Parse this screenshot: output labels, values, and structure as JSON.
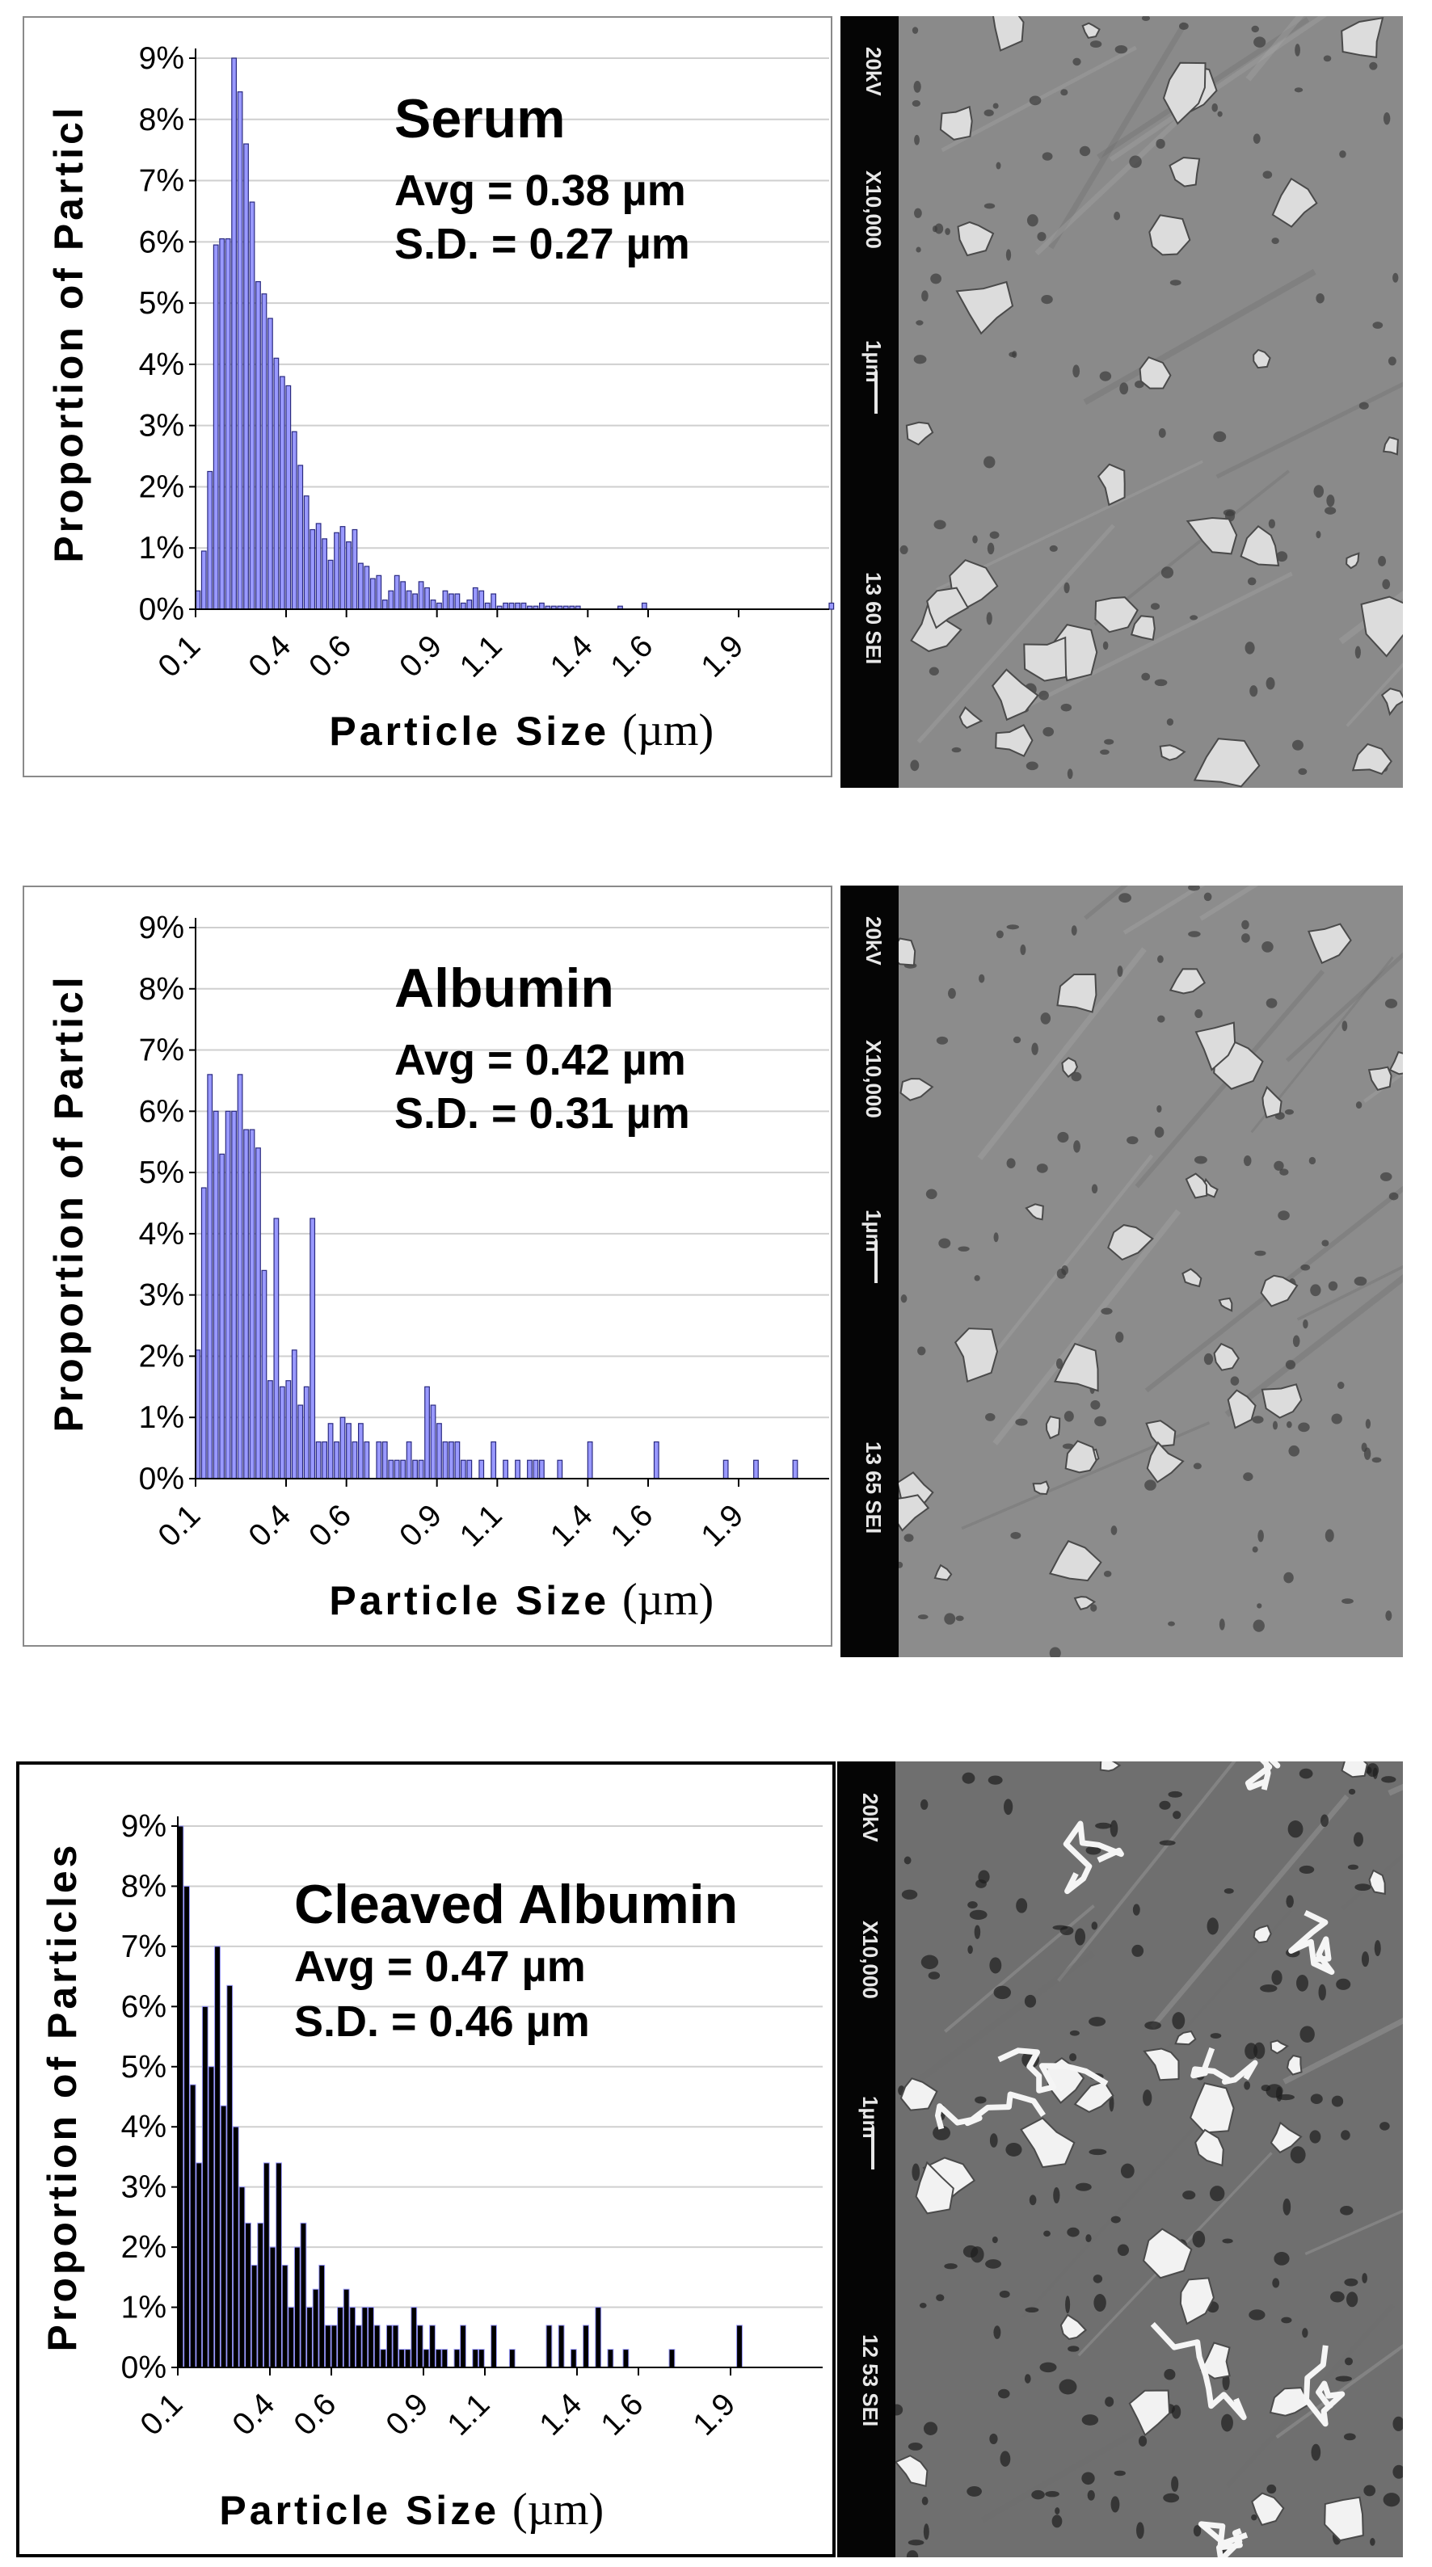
{
  "chart_data": [
    {
      "type": "bar",
      "title": "Serum",
      "stats": [
        "Avg = 0.38 µm",
        "S.D. = 0.27 µm"
      ],
      "xlabel": "Particle Size",
      "xunit": "(µm)",
      "ylabel": "Proportion of Particl",
      "xlim": [
        0.1,
        2.2
      ],
      "ylim": [
        0,
        9
      ],
      "y_ticks": [
        "0%",
        "1%",
        "2%",
        "3%",
        "4%",
        "5%",
        "6%",
        "7%",
        "8%",
        "9%"
      ],
      "x_ticks": [
        {
          "label": "0.1",
          "value": 0.1
        },
        {
          "label": "0.4",
          "value": 0.4
        },
        {
          "label": "0.6",
          "value": 0.6
        },
        {
          "label": "0.9",
          "value": 0.9
        },
        {
          "label": "1.1",
          "value": 1.1
        },
        {
          "label": "1.4",
          "value": 1.4
        },
        {
          "label": "1.6",
          "value": 1.6
        },
        {
          "label": "1.9",
          "value": 1.9
        }
      ],
      "bar_width": 0.015,
      "bar_color": "#9999ff",
      "grid": true,
      "x": [
        0.1,
        0.12,
        0.14,
        0.16,
        0.18,
        0.2,
        0.22,
        0.24,
        0.26,
        0.28,
        0.3,
        0.32,
        0.34,
        0.36,
        0.38,
        0.4,
        0.42,
        0.44,
        0.46,
        0.48,
        0.5,
        0.52,
        0.54,
        0.56,
        0.58,
        0.6,
        0.62,
        0.64,
        0.66,
        0.68,
        0.7,
        0.72,
        0.74,
        0.76,
        0.78,
        0.8,
        0.82,
        0.84,
        0.86,
        0.88,
        0.9,
        0.92,
        0.94,
        0.96,
        0.98,
        1.0,
        1.02,
        1.04,
        1.06,
        1.08,
        1.1,
        1.12,
        1.14,
        1.16,
        1.18,
        1.2,
        1.22,
        1.24,
        1.26,
        1.28,
        1.3,
        1.32,
        1.34,
        1.36,
        1.5,
        1.58,
        2.2
      ],
      "values": [
        0.3,
        0.95,
        2.25,
        5.95,
        6.05,
        6.05,
        9.0,
        8.45,
        7.6,
        6.65,
        5.35,
        5.15,
        4.75,
        4.1,
        3.8,
        3.65,
        2.9,
        2.35,
        1.85,
        1.3,
        1.4,
        1.15,
        0.8,
        1.25,
        1.35,
        1.1,
        1.3,
        0.75,
        0.7,
        0.5,
        0.55,
        0.15,
        0.3,
        0.55,
        0.45,
        0.3,
        0.25,
        0.45,
        0.35,
        0.15,
        0.1,
        0.3,
        0.25,
        0.25,
        0.1,
        0.15,
        0.35,
        0.3,
        0.1,
        0.25,
        0.05,
        0.1,
        0.1,
        0.1,
        0.1,
        0.05,
        0.05,
        0.1,
        0.05,
        0.05,
        0.05,
        0.05,
        0.05,
        0.05,
        0.05,
        0.1,
        0.1
      ]
    },
    {
      "type": "bar",
      "title": "Albumin",
      "stats": [
        "Avg = 0.42 µm",
        "S.D. = 0.31 µm"
      ],
      "xlabel": "Particle Size",
      "xunit": "(µm)",
      "ylabel": "Proportion of Particl",
      "xlim": [
        0.1,
        2.2
      ],
      "ylim": [
        0,
        9
      ],
      "y_ticks": [
        "0%",
        "1%",
        "2%",
        "3%",
        "4%",
        "5%",
        "6%",
        "7%",
        "8%",
        "9%"
      ],
      "x_ticks": [
        {
          "label": "0.1",
          "value": 0.1
        },
        {
          "label": "0.4",
          "value": 0.4
        },
        {
          "label": "0.6",
          "value": 0.6
        },
        {
          "label": "0.9",
          "value": 0.9
        },
        {
          "label": "1.1",
          "value": 1.1
        },
        {
          "label": "1.4",
          "value": 1.4
        },
        {
          "label": "1.6",
          "value": 1.6
        },
        {
          "label": "1.9",
          "value": 1.9
        }
      ],
      "bar_width": 0.015,
      "bar_color": "#9999ff",
      "grid": true,
      "x": [
        0.1,
        0.12,
        0.14,
        0.16,
        0.18,
        0.2,
        0.22,
        0.24,
        0.26,
        0.28,
        0.3,
        0.32,
        0.34,
        0.36,
        0.38,
        0.4,
        0.42,
        0.44,
        0.46,
        0.48,
        0.5,
        0.52,
        0.54,
        0.56,
        0.58,
        0.6,
        0.62,
        0.64,
        0.66,
        0.7,
        0.72,
        0.74,
        0.76,
        0.78,
        0.8,
        0.82,
        0.84,
        0.86,
        0.88,
        0.9,
        0.92,
        0.94,
        0.96,
        0.98,
        1.0,
        1.04,
        1.08,
        1.12,
        1.16,
        1.2,
        1.22,
        1.24,
        1.3,
        1.4,
        1.62,
        1.85,
        1.95,
        2.08
      ],
      "values": [
        2.1,
        4.75,
        6.6,
        6.0,
        5.3,
        6.0,
        6.0,
        6.6,
        5.7,
        5.7,
        5.4,
        3.4,
        1.6,
        4.25,
        1.5,
        1.6,
        2.1,
        1.2,
        1.5,
        4.25,
        0.6,
        0.6,
        0.9,
        0.6,
        1.0,
        0.9,
        0.6,
        0.9,
        0.6,
        0.6,
        0.6,
        0.3,
        0.3,
        0.3,
        0.6,
        0.3,
        0.3,
        1.5,
        1.2,
        0.9,
        0.6,
        0.6,
        0.6,
        0.3,
        0.3,
        0.3,
        0.6,
        0.3,
        0.3,
        0.3,
        0.3,
        0.3,
        0.3,
        0.6,
        0.6,
        0.3,
        0.3,
        0.3
      ]
    },
    {
      "type": "bar",
      "title": "Cleaved Albumin",
      "stats": [
        "Avg = 0.47 µm",
        "S.D. = 0.46 µm"
      ],
      "xlabel": "Particle Size",
      "xunit": "(µm)",
      "ylabel": "Proportion of Particles",
      "xlim": [
        0.1,
        2.2
      ],
      "ylim": [
        0,
        9
      ],
      "y_ticks": [
        "0%",
        "1%",
        "2%",
        "3%",
        "4%",
        "5%",
        "6%",
        "7%",
        "8%",
        "9%"
      ],
      "x_ticks": [
        {
          "label": "0.1",
          "value": 0.1
        },
        {
          "label": "0.4",
          "value": 0.4
        },
        {
          "label": "0.6",
          "value": 0.6
        },
        {
          "label": "0.9",
          "value": 0.9
        },
        {
          "label": "1.1",
          "value": 1.1
        },
        {
          "label": "1.4",
          "value": 1.4
        },
        {
          "label": "1.6",
          "value": 1.6
        },
        {
          "label": "1.9",
          "value": 1.9
        }
      ],
      "bar_width": 0.018,
      "bar_color": "#000000",
      "bar_edge": "#9999ff",
      "grid": true,
      "x": [
        0.1,
        0.12,
        0.14,
        0.16,
        0.18,
        0.2,
        0.22,
        0.24,
        0.26,
        0.28,
        0.3,
        0.32,
        0.34,
        0.36,
        0.38,
        0.4,
        0.42,
        0.44,
        0.46,
        0.48,
        0.5,
        0.52,
        0.54,
        0.56,
        0.58,
        0.6,
        0.62,
        0.64,
        0.66,
        0.68,
        0.7,
        0.72,
        0.74,
        0.76,
        0.78,
        0.8,
        0.82,
        0.84,
        0.86,
        0.88,
        0.9,
        0.92,
        0.94,
        0.96,
        1.0,
        1.02,
        1.06,
        1.08,
        1.12,
        1.18,
        1.3,
        1.34,
        1.38,
        1.42,
        1.46,
        1.5,
        1.55,
        1.7,
        1.92
      ],
      "values": [
        9.0,
        8.0,
        4.7,
        3.4,
        6.0,
        5.0,
        7.0,
        4.35,
        6.35,
        4.0,
        3.0,
        2.4,
        1.7,
        2.4,
        3.4,
        2.0,
        3.4,
        1.7,
        1.0,
        2.0,
        2.4,
        1.0,
        1.3,
        1.7,
        0.7,
        0.7,
        1.0,
        1.3,
        1.0,
        0.7,
        1.0,
        1.0,
        0.7,
        0.3,
        0.7,
        0.7,
        0.3,
        0.3,
        1.0,
        0.7,
        0.3,
        0.7,
        0.3,
        0.3,
        0.3,
        0.7,
        0.3,
        0.3,
        0.7,
        0.3,
        0.7,
        0.7,
        0.3,
        0.7,
        1.0,
        0.3,
        0.3,
        0.3,
        0.7
      ]
    }
  ],
  "sem_panels": [
    {
      "labels": [
        "20kV",
        "X10,000",
        "1µm",
        "13 60 SEI"
      ],
      "tone": "#8a8a8a"
    },
    {
      "labels": [
        "20kV",
        "X10,000",
        "1µm",
        "13 65 SEI"
      ],
      "tone": "#8c8c8c"
    },
    {
      "labels": [
        "20kV",
        "X10,000",
        "1µm",
        "12 53 SEI"
      ],
      "tone": "#6f6f6f"
    }
  ]
}
